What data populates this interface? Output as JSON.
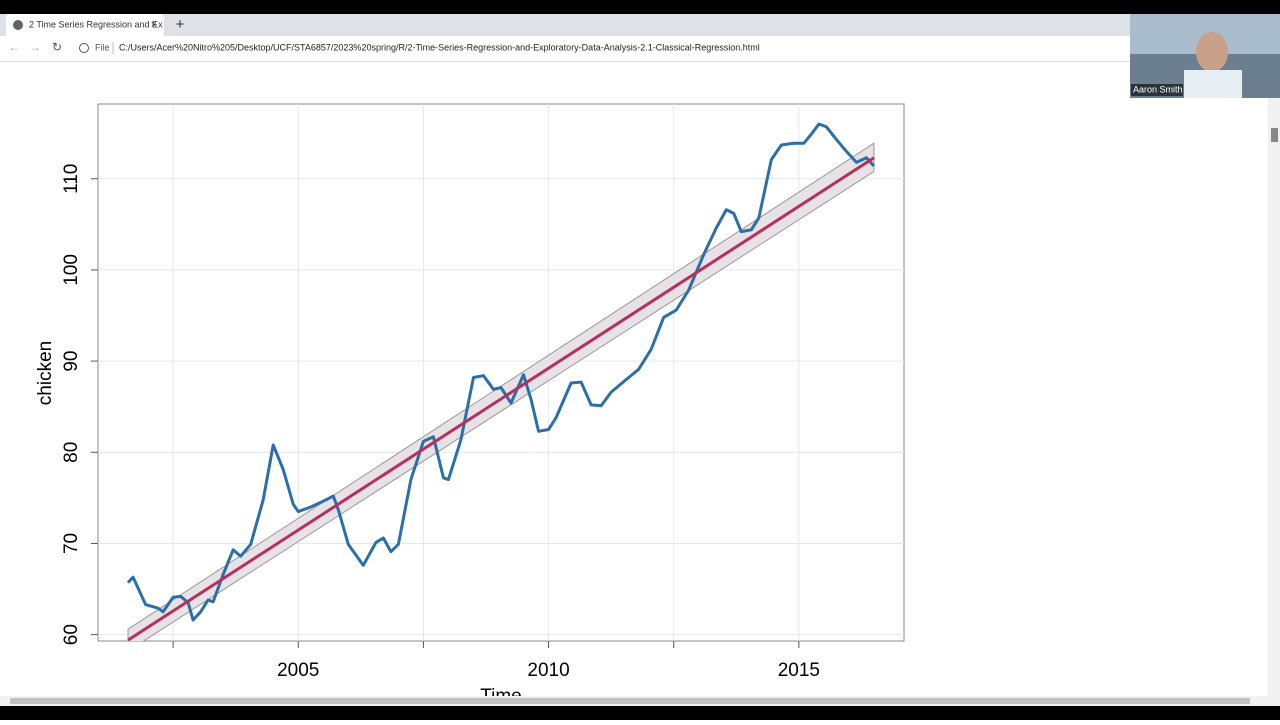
{
  "browser": {
    "tab_title": "2 Time Series Regression and Ex",
    "file_label": "File",
    "url": "C:/Users/Acer%20Nitro%205/Desktop/UCF/STA6857/2023%20spring/R/2-Time-Series-Regression-and-Exploratory-Data-Analysis-2.1-Classical-Regression.html",
    "video_name": "Aaron Smith"
  },
  "chart_data": {
    "type": "line",
    "x_label": "Time",
    "y_label": "chicken",
    "xlim": [
      2001.0,
      2017.1
    ],
    "ylim": [
      59.3,
      118.2
    ],
    "xticks": [
      2005,
      2010,
      2015
    ],
    "xgrid": [
      2002.5,
      2005,
      2007.5,
      2010,
      2012.5,
      2015
    ],
    "yticks": [
      60,
      70,
      80,
      90,
      100,
      110
    ],
    "grid": true,
    "series": [
      {
        "color": "#2a6fa8",
        "x": [
          2001.6,
          2001.7,
          2001.95,
          2002.2,
          2002.3,
          2002.5,
          2002.65,
          2002.8,
          2002.9,
          2003.05,
          2003.2,
          2003.3,
          2003.5,
          2003.7,
          2003.85,
          2004.05,
          2004.3,
          2004.5,
          2004.7,
          2004.9,
          2005.0,
          2005.25,
          2005.45,
          2005.7,
          2005.8,
          2006.0,
          2006.3,
          2006.55,
          2006.7,
          2006.85,
          2007.0,
          2007.25,
          2007.5,
          2007.7,
          2007.9,
          2008.0,
          2008.25,
          2008.5,
          2008.7,
          2008.9,
          2009.05,
          2009.25,
          2009.5,
          2009.65,
          2009.8,
          2010.0,
          2010.15,
          2010.45,
          2010.65,
          2010.85,
          2011.05,
          2011.25,
          2011.6,
          2011.8,
          2012.05,
          2012.3,
          2012.55,
          2012.8,
          2013.1,
          2013.35,
          2013.55,
          2013.7,
          2013.85,
          2014.05,
          2014.2,
          2014.45,
          2014.65,
          2014.9,
          2015.1,
          2015.25,
          2015.4,
          2015.55,
          2015.75,
          2015.95,
          2016.15,
          2016.35,
          2016.5
        ],
        "values": [
          65.7,
          66.3,
          63.3,
          62.9,
          62.5,
          64.1,
          64.2,
          63.5,
          61.6,
          62.5,
          63.8,
          63.6,
          66.6,
          69.3,
          68.6,
          69.9,
          74.8,
          80.8,
          78.1,
          74.3,
          73.5,
          74.0,
          74.5,
          75.2,
          73.7,
          69.9,
          67.6,
          70.1,
          70.6,
          69.1,
          69.9,
          77.0,
          81.2,
          81.7,
          77.2,
          77.0,
          81.4,
          88.2,
          88.4,
          86.9,
          87.1,
          85.4,
          88.5,
          85.8,
          82.3,
          82.5,
          83.8,
          87.6,
          87.7,
          85.2,
          85.1,
          86.6,
          88.2,
          89.1,
          91.3,
          94.8,
          95.6,
          97.8,
          101.7,
          104.6,
          106.6,
          106.2,
          104.2,
          104.4,
          105.7,
          112.1,
          113.7,
          113.9,
          113.9,
          114.9,
          116.0,
          115.7,
          114.3,
          113.0,
          111.8,
          112.3,
          111.4
        ]
      },
      {
        "color": "#b5305c",
        "x": [
          2001.6,
          2016.5
        ],
        "values": [
          59.4,
          112.3
        ]
      }
    ],
    "band": {
      "color": "#e8e2e6",
      "x": [
        2001.6,
        2016.5
      ],
      "lower": [
        58.2,
        110.8
      ],
      "upper": [
        60.6,
        113.9
      ]
    }
  }
}
